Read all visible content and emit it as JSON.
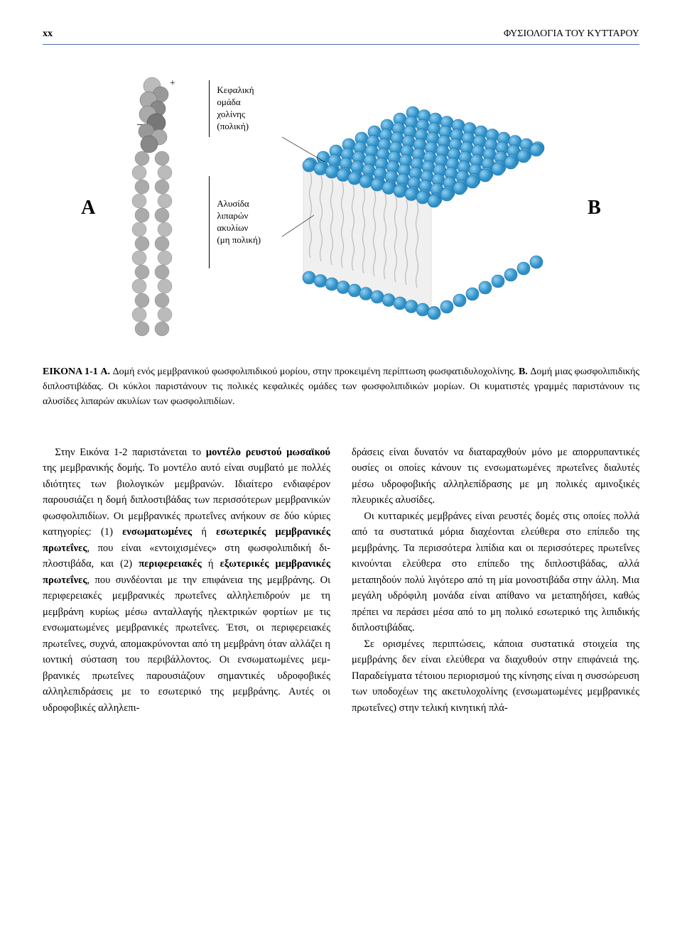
{
  "header": {
    "page_number": "xx",
    "chapter_title": "ΦΥΣΙΟΛΟΓΙΑ ΤΟΥ ΚΥΤΤΑΡΟΥ"
  },
  "figure": {
    "panel_a_label": "A",
    "panel_b_label": "B",
    "plus": "+",
    "minus": "−",
    "label_head_1": "Κεφαλική",
    "label_head_2": "ομάδα",
    "label_head_3": "χολίνης",
    "label_head_4": "(πολική)",
    "label_tail_1": "Αλυσίδα",
    "label_tail_2": "λιπαρών",
    "label_tail_3": "ακυλίων",
    "label_tail_4": "(μη πολική)",
    "molecule_colors": {
      "sphere_dark": "#888888",
      "sphere_light": "#bbbbbb",
      "bilayer_head": "#3fa2d9",
      "bilayer_head_stroke": "#1e6fa8",
      "bilayer_tail": "#d0d0d0",
      "bilayer_side": "#6bb8e0"
    }
  },
  "caption": {
    "label": "ΕΙΚΟΝΑ 1-1",
    "text_a_bold": " A.",
    "text_a": " Δομή ενός μεμβρανικού φωσφολιπιδικού μορίου, στην προκειμένη περί­πτωση φωσφατιδυλοχολίνης.",
    "text_b_bold": " B.",
    "text_b": " Δομή μιας φωσφολιπιδικής διπλοστιβάδας. Οι κύκλοι παριστάνουν τις πολικές κεφαλικές ομάδες των φωσφολιπιδικών μορίων. Οι κυματιστές γραμμές παριστάνουν τις αλυσίδες λιπαρών ακυλίων των φωσφολιπιδίων."
  },
  "body": {
    "col1_p1_a": "Στην Εικόνα 1-2 παριστάνεται το ",
    "col1_p1_bold1": "μοντέλο ρευ­στού μωσαϊκού",
    "col1_p1_b": " της μεμβρανικής δομής. Το μοντέλο αυτό είναι συμβατό με πολλές ιδιότητες των βιολο­γικών μεμβρανών. Ιδιαίτερο ενδιαφέρον παρουσιά­ζει η δομή διπλοστιβάδας των περισσότερων μεμ­βρανικών φωσφολιπιδίων. Οι μεμβρανικές πρω­τεΐνες ανήκουν σε δύο κύριες κατηγορίες: (1) ",
    "col1_p1_bold2": "εν­σωματωμένες",
    "col1_p1_c": " ή ",
    "col1_p1_bold3": "εσωτερικές μεμβρανικές πρωτεΐνες",
    "col1_p1_d": ", που είναι «εντοιχισμένες» στη φωσφολιπιδική δι­πλοστιβάδα, και (2) ",
    "col1_p1_bold4": "περιφερειακές",
    "col1_p1_e": " ή ",
    "col1_p1_bold5": "εξωτερικές μεμβρανικές πρωτεΐνες",
    "col1_p1_f": ", που συνδέονται με την επι­φάνεια της μεμβράνης. Οι περιφερειακές μεμβρα­νικές πρωτεΐνες αλληλεπιδρούν με τη μεμβράνη κυρίως μέσω ανταλλαγής ηλεκτρικών φορτίων με τις ενσωματωμένες μεμβρανικές πρωτεΐνες. Έτσι, οι περιφερειακές πρωτεΐνες, συχνά, απομακρύνο­νται από τη μεμβράνη όταν αλλάζει η ιοντική σύ­σταση του περιβάλλοντος. Οι ενσωματωμένες μεμ­βρανικές πρωτεΐνες παρουσιάζουν σημαντικές υδροφοβικές αλληλεπιδράσεις με το εσωτερικό της μεμβράνης. Αυτές οι υδροφοβικές αλληλεπι-",
    "col2_p1": "δράσεις είναι δυνατόν να διαταραχθούν μόνο με απορρυπαντικές ουσίες οι οποίες κάνουν τις ενσω­ματωμένες πρωτεΐνες διαλυτές μέσω υδροφοβικής αλληλεπίδρασης με μη πολικές αμινοξικές πλευρι­κές αλυσίδες.",
    "col2_p2": "Οι κυτταρικές μεμβράνες είναι ρευστές δομές στις οποίες πολλά από τα συστατικά μόρια διαχέο­νται ελεύθερα στο επίπεδο της μεμβράνης. Τα πε­ρισσότερα λιπίδια και οι περισσότερες πρωτεΐνες κινούνται ελεύθερα στο επίπεδο της διπλοστιβά­δας, αλλά μεταπηδούν πολύ λιγότερο από τη μία μονοστιβάδα στην άλλη. Μια μεγάλη υδρόφιλη μο­νάδα είναι απίθανο να μεταπηδήσει, καθώς πρέπει να περάσει μέσα από το μη πολικό εσωτερικό της λιπιδικής διπλοστιβάδας.",
    "col2_p3": "Σε ορισμένες περιπτώσεις, κάποια συστατικά στοιχεία της μεμβράνης δεν είναι ελεύθερα να δια­χυθούν στην επιφάνειά της. Παραδείγματα τέτοιου περιορισμού της κίνησης είναι η συσσώρευση των υποδοχέων της ακετυλοχολίνης (ενσωματωμένες μεμβρανικές πρωτεΐνες) στην τελική κινητική πλά-"
  }
}
